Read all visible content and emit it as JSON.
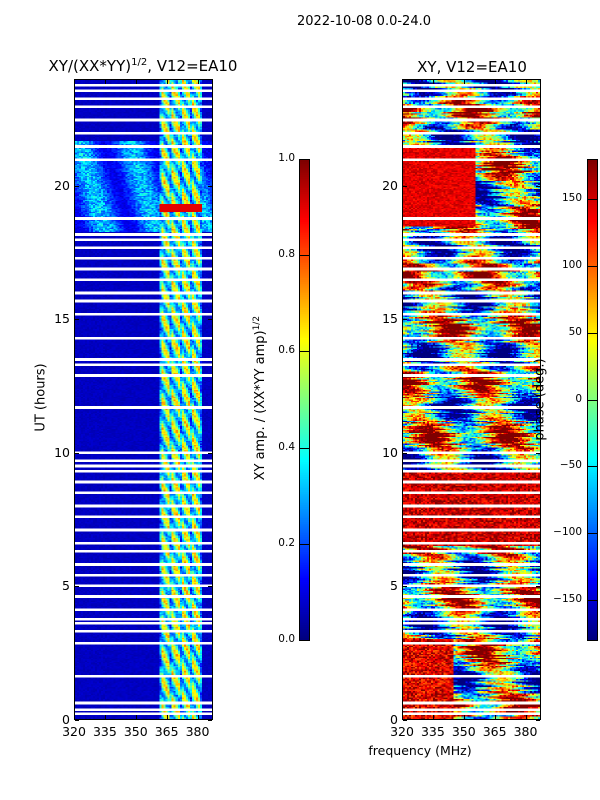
{
  "chart_data": [
    {
      "type": "heatmap",
      "title_main": "XY/(XX*YY)",
      "title_sup": "1/2",
      "title_rest": ", V12=EA10",
      "xlabel": "",
      "ylabel": "UT (hours)",
      "xlim": [
        320,
        387.5
      ],
      "ylim": [
        0,
        24
      ],
      "xticks": [
        320,
        335,
        350,
        365,
        380
      ],
      "yticks": [
        0,
        5,
        10,
        15,
        20
      ],
      "colorbar": {
        "label_main": "XY amp. / (XX*YY amp)",
        "label_sup": "1/2",
        "range": [
          0,
          1
        ],
        "ticks": [
          "0.0",
          "0.2",
          "0.4",
          "0.6",
          "0.8",
          "1.0"
        ],
        "colormap": "jet"
      },
      "description_values": {
        "background_level": 0.05,
        "channel_band_mhz": [
          362,
          383
        ],
        "channel_level": 0.5,
        "active_band_hours": [
          18.3,
          21.7
        ],
        "active_band_level": 0.3
      }
    },
    {
      "type": "heatmap",
      "title": "XY, V12=EA10",
      "xlabel": "frequency (MHz)",
      "ylabel": "",
      "xlim": [
        320,
        387.5
      ],
      "ylim": [
        0,
        24
      ],
      "xticks": [
        320,
        335,
        350,
        365,
        380
      ],
      "yticks": [
        0,
        5,
        10,
        15,
        20
      ],
      "colorbar": {
        "label": "phase (deg.)",
        "range": [
          -180,
          180
        ],
        "ticks": [
          "−150",
          "−100",
          "−50",
          "0",
          "50",
          "100",
          "150"
        ],
        "tick_values": [
          -150,
          -100,
          -50,
          0,
          50,
          100,
          150
        ],
        "colormap": "jet"
      }
    }
  ],
  "suptitle": "2022-10-08 0.0-24.0",
  "flagged_times_hours": [
    0.2,
    0.35,
    0.6,
    1.6,
    2.85,
    3.3,
    3.6,
    3.75,
    4.1,
    4.6,
    5.0,
    5.4,
    5.8,
    6.3,
    6.6,
    7.1,
    7.6,
    8.0,
    8.5,
    8.9,
    9.3,
    9.5,
    9.7,
    10.0,
    11.7,
    12.9,
    13.3,
    13.5,
    14.3,
    15.2,
    15.7,
    16.0,
    16.5,
    16.9,
    17.3,
    17.7,
    18.0,
    18.2,
    18.8,
    21.0,
    21.5,
    22.0,
    22.5,
    23.0,
    23.3,
    23.6,
    23.8
  ]
}
